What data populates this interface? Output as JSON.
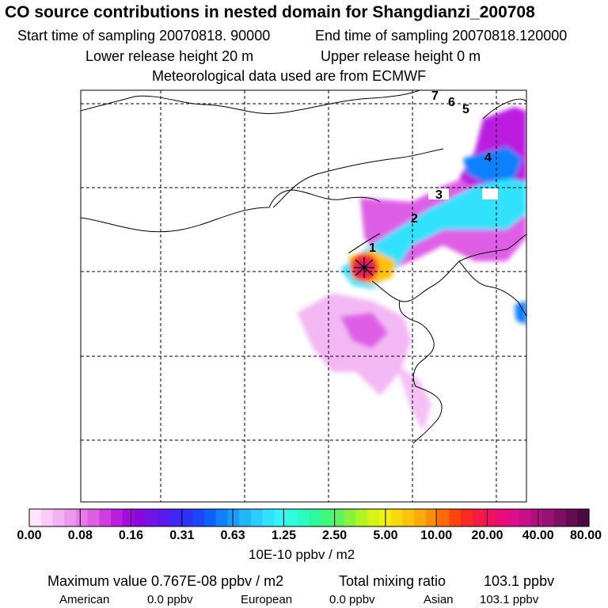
{
  "header": {
    "title": "CO  source contributions in nested domain for Shangdianzi_200708",
    "start_label": "Start time of sampling 20070818. 90000",
    "end_label": "End time of sampling 20070818.120000",
    "lower_label": "Lower release height   20 m",
    "upper_label": "Upper release height    0 m",
    "met_label": "Meteorological data used are from ECMWF"
  },
  "map": {
    "station_marker": "asterisk-icon",
    "trajectory_labels": [
      "1",
      "2",
      "3",
      "4",
      "5",
      "6",
      "7"
    ]
  },
  "colorbar": {
    "ticks": [
      "0.00",
      "0.08",
      "0.16",
      "0.31",
      "0.63",
      "1.25",
      "2.50",
      "5.00",
      "10.00",
      "20.00",
      "40.00",
      "80.00"
    ],
    "units": "10E-10 ppbv / m2",
    "colors": [
      "#fde6fb",
      "#f9ccf7",
      "#f3b2f3",
      "#ee98ef",
      "#e77ae9",
      "#de5ee6",
      "#cf3de3",
      "#bb1ee0",
      "#a20cde",
      "#8a08df",
      "#7214e6",
      "#5a1aee",
      "#4226f5",
      "#2b32fb",
      "#1a46fd",
      "#0c62fc",
      "#1080fd",
      "#1a9cfd",
      "#22b6fd",
      "#2acdfd",
      "#30e2fd",
      "#34f2f6",
      "#2ffde0",
      "#2cfcc2",
      "#2dfa9e",
      "#3ff77a",
      "#5ff55a",
      "#88f33a",
      "#b2f322",
      "#d6f418",
      "#f2ef12",
      "#fcd80e",
      "#fdc20c",
      "#fdaa0a",
      "#fd8e08",
      "#fd6a08",
      "#fc460e",
      "#f92a24",
      "#f51a42",
      "#f0125e",
      "#ea0d78",
      "#dc0e8a",
      "#c70f8a",
      "#b01080",
      "#971072",
      "#7d0f62",
      "#640c52",
      "#4c0a42"
    ]
  },
  "footer": {
    "max_label": "Maximum value  0.767E-08 ppbv / m2",
    "total_label": "Total mixing ratio",
    "total_value": "103.1 ppbv",
    "american_label": "American",
    "american_value": "0.0 ppbv",
    "european_label": "European",
    "european_value": "0.0 ppbv",
    "asian_label": "Asian",
    "asian_value": "103.1 ppbv"
  }
}
